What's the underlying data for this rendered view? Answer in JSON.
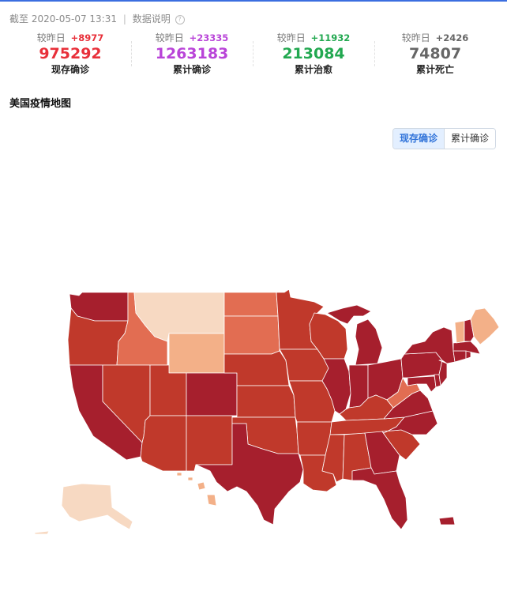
{
  "update": {
    "prefix": "截至",
    "timestamp": "2020-05-07 13:31",
    "separator": "|",
    "help_link": "数据说明",
    "help_icon": "question-circle-icon"
  },
  "stats": [
    {
      "compare_label": "较昨日",
      "delta": "+8977",
      "value": "975292",
      "label": "现存确诊",
      "color": "#e8303a"
    },
    {
      "compare_label": "较昨日",
      "delta": "+23335",
      "value": "1263183",
      "label": "累计确诊",
      "color": "#b944d8"
    },
    {
      "compare_label": "较昨日",
      "delta": "+11932",
      "value": "213084",
      "label": "累计治愈",
      "color": "#22a850"
    },
    {
      "compare_label": "较昨日",
      "delta": "+2426",
      "value": "74807",
      "label": "累计死亡",
      "color": "#666666"
    }
  ],
  "map": {
    "title": "美国疫情地图",
    "toggle": {
      "active": "现存确诊",
      "inactive": "累计确诊"
    },
    "palette": {
      "dark": "#a61f2d",
      "medium": "#c0392b",
      "orange": "#e26d52",
      "light": "#f3b088",
      "pale": "#f7d9c2"
    }
  }
}
